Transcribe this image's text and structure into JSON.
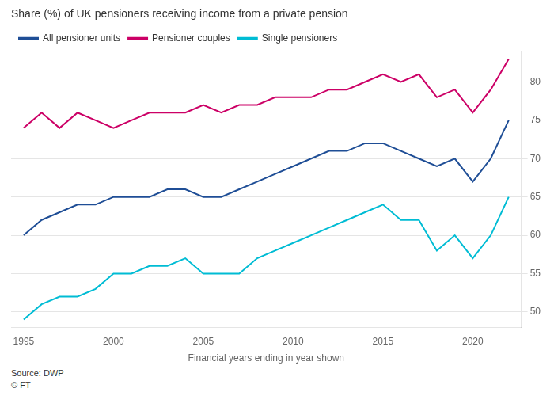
{
  "chart_data": {
    "type": "line",
    "title": "Share (%) of UK pensioners receiving income from a private pension",
    "x_label": "Financial years ending in year shown",
    "annotations": [
      "Source: DWP",
      "© FT"
    ],
    "x": [
      1995,
      1996,
      1997,
      1998,
      1999,
      2000,
      2001,
      2002,
      2003,
      2004,
      2005,
      2006,
      2007,
      2008,
      2009,
      2010,
      2011,
      2012,
      2013,
      2014,
      2015,
      2016,
      2017,
      2018,
      2019,
      2020,
      2021,
      2022
    ],
    "series": [
      {
        "name": "All pensioner units",
        "color": "#1f4e96",
        "values": [
          60,
          62,
          63,
          64,
          64,
          65,
          65,
          65,
          66,
          66,
          65,
          65,
          66,
          67,
          68,
          69,
          70,
          71,
          71,
          72,
          72,
          71,
          70,
          69,
          70,
          67,
          70,
          75
        ]
      },
      {
        "name": "Pensioner couples",
        "color": "#cc0066",
        "values": [
          74,
          76,
          74,
          76,
          75,
          74,
          75,
          76,
          76,
          76,
          77,
          76,
          77,
          77,
          78,
          78,
          78,
          79,
          79,
          80,
          81,
          80,
          81,
          78,
          79,
          76,
          79,
          83
        ]
      },
      {
        "name": "Single pensioners",
        "color": "#00bcd4",
        "values": [
          49,
          51,
          52,
          52,
          53,
          55,
          55,
          56,
          56,
          57,
          55,
          55,
          55,
          57,
          58,
          59,
          60,
          61,
          62,
          63,
          64,
          62,
          62,
          58,
          60,
          57,
          60,
          65
        ]
      }
    ],
    "xlim": [
      1994.3,
      2022.7
    ],
    "xticks": [
      1995,
      2000,
      2005,
      2010,
      2015,
      2020
    ],
    "ylim": [
      48,
      84
    ],
    "yticks": [
      50,
      55,
      60,
      65,
      70,
      75,
      80
    ],
    "grid": true,
    "legend": "top-left"
  }
}
